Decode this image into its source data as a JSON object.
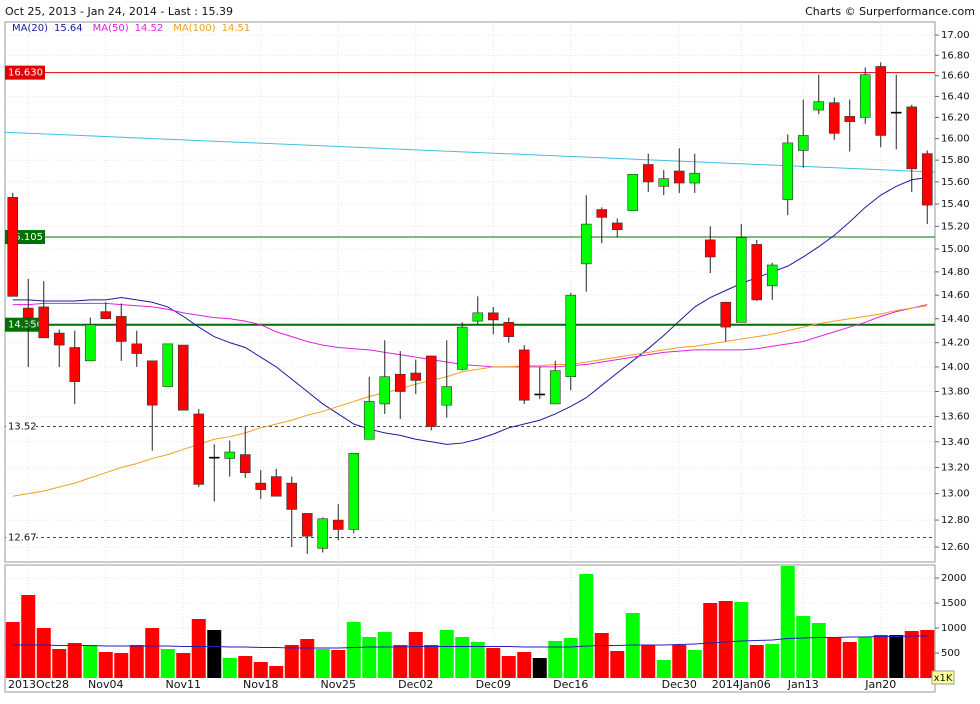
{
  "chart_data": [
    {
      "type": "candlestick",
      "title": "Oct 25, 2013 - Jan 24, 2014 - Last : 15.39",
      "source": "Charts © Surperformance.com",
      "categories": [
        null,
        "2013Oct28",
        null,
        null,
        null,
        null,
        "Nov04",
        null,
        null,
        null,
        null,
        "Nov11",
        null,
        null,
        null,
        null,
        "Nov18",
        null,
        null,
        null,
        null,
        "Nov25",
        null,
        null,
        null,
        null,
        "Dec02",
        null,
        null,
        null,
        null,
        "Dec09",
        null,
        null,
        null,
        null,
        "Dec16",
        null,
        null,
        null,
        null,
        null,
        null,
        "Dec30",
        null,
        null,
        null,
        "2014Jan06",
        null,
        null,
        null,
        "Jan13",
        null,
        null,
        null,
        null,
        "Jan20",
        null,
        null,
        null
      ],
      "open": [
        15.46,
        14.49,
        14.5,
        14.28,
        14.16,
        14.05,
        14.46,
        14.42,
        14.19,
        14.05,
        13.84,
        14.18,
        13.62,
        13.28,
        13.27,
        13.3,
        13.08,
        13.13,
        13.08,
        12.85,
        12.59,
        12.8,
        12.73,
        13.42,
        13.7,
        13.94,
        13.95,
        14.09,
        13.69,
        13.98,
        14.38,
        14.45,
        14.37,
        14.14,
        13.78,
        13.7,
        13.92,
        14.87,
        15.35,
        15.23,
        15.34,
        15.76,
        15.56,
        15.7,
        15.59,
        15.08,
        14.54,
        14.37,
        15.04,
        14.68,
        15.44,
        15.89,
        16.27,
        16.34,
        16.21,
        16.2,
        16.69,
        16.25,
        16.3,
        15.86
      ],
      "high": [
        15.5,
        14.74,
        14.72,
        14.31,
        14.3,
        14.41,
        14.54,
        14.53,
        14.3,
        14.05,
        14.19,
        14.18,
        13.66,
        13.38,
        13.41,
        13.52,
        13.18,
        13.19,
        13.13,
        12.85,
        12.82,
        12.92,
        13.31,
        13.92,
        14.22,
        14.13,
        14.06,
        14.09,
        14.22,
        14.37,
        14.59,
        14.5,
        14.41,
        14.18,
        14.0,
        14.05,
        14.62,
        15.48,
        15.37,
        15.27,
        15.67,
        15.86,
        15.71,
        15.91,
        15.86,
        15.2,
        14.54,
        15.22,
        15.08,
        14.88,
        16.04,
        16.37,
        16.61,
        16.39,
        16.37,
        16.68,
        16.73,
        16.61,
        16.32,
        15.89
      ],
      "low": [
        14.59,
        14.0,
        14.24,
        14.0,
        13.7,
        14.05,
        14.4,
        14.05,
        14.0,
        13.33,
        13.84,
        13.65,
        13.05,
        12.94,
        13.13,
        13.12,
        12.96,
        12.98,
        12.6,
        12.55,
        12.56,
        12.65,
        12.7,
        13.42,
        13.62,
        13.58,
        13.78,
        13.49,
        13.59,
        13.97,
        14.35,
        14.27,
        14.2,
        13.7,
        13.74,
        13.7,
        13.81,
        14.63,
        15.05,
        15.1,
        15.34,
        15.51,
        15.48,
        15.5,
        15.5,
        14.79,
        14.21,
        14.37,
        14.55,
        14.56,
        15.3,
        15.73,
        16.23,
        15.99,
        15.88,
        16.14,
        15.92,
        15.9,
        15.51,
        15.22
      ],
      "close": [
        14.59,
        14.41,
        14.24,
        14.18,
        13.88,
        14.35,
        14.4,
        14.21,
        14.11,
        13.69,
        14.19,
        13.65,
        13.07,
        13.28,
        13.32,
        13.16,
        13.03,
        12.98,
        12.88,
        12.68,
        12.81,
        12.73,
        13.31,
        13.72,
        13.92,
        13.8,
        13.89,
        13.52,
        13.84,
        14.33,
        14.45,
        14.39,
        14.25,
        13.73,
        13.78,
        13.97,
        14.6,
        15.22,
        15.28,
        15.17,
        15.67,
        15.6,
        15.63,
        15.59,
        15.68,
        14.93,
        14.33,
        15.1,
        14.56,
        14.86,
        15.96,
        16.03,
        16.35,
        16.05,
        16.16,
        16.61,
        16.03,
        16.25,
        15.72,
        15.39
      ],
      "up_color": "#00ff00",
      "down_color": "#ff0000",
      "flat_color": "#000000",
      "series": [
        {
          "name": "MA(20)",
          "last": 15.64,
          "color": "#1a1aa0",
          "values": [
            14.56,
            14.56,
            14.55,
            14.55,
            14.55,
            14.56,
            14.56,
            14.58,
            14.56,
            14.54,
            14.5,
            14.42,
            14.33,
            14.25,
            14.2,
            14.16,
            14.08,
            14.0,
            13.9,
            13.8,
            13.7,
            13.62,
            13.54,
            13.5,
            13.47,
            13.45,
            13.42,
            13.4,
            13.38,
            13.39,
            13.42,
            13.46,
            13.51,
            13.54,
            13.57,
            13.62,
            13.68,
            13.75,
            13.85,
            13.95,
            14.05,
            14.15,
            14.26,
            14.38,
            14.5,
            14.58,
            14.64,
            14.7,
            14.75,
            14.8,
            14.85,
            14.93,
            15.02,
            15.12,
            15.24,
            15.37,
            15.48,
            15.56,
            15.62,
            15.64
          ]
        },
        {
          "name": "MA(50)",
          "last": 14.52,
          "color": "#e020e0",
          "values": [
            14.52,
            14.52,
            14.53,
            14.53,
            14.53,
            14.53,
            14.53,
            14.52,
            14.51,
            14.5,
            14.48,
            14.45,
            14.43,
            14.41,
            14.4,
            14.38,
            14.35,
            14.29,
            14.25,
            14.21,
            14.18,
            14.16,
            14.15,
            14.14,
            14.12,
            14.1,
            14.08,
            14.06,
            14.04,
            14.02,
            14.01,
            14.0,
            14.0,
            14.0,
            14.0,
            14.0,
            14.01,
            14.02,
            14.04,
            14.06,
            14.08,
            14.1,
            14.12,
            14.13,
            14.14,
            14.14,
            14.14,
            14.14,
            14.15,
            14.17,
            14.19,
            14.21,
            14.25,
            14.29,
            14.33,
            14.37,
            14.42,
            14.46,
            14.49,
            14.52
          ]
        },
        {
          "name": "MA(100)",
          "last": 14.51,
          "color": "#f0a020",
          "values": [
            12.98,
            13.0,
            13.02,
            13.05,
            13.08,
            13.12,
            13.16,
            13.2,
            13.23,
            13.27,
            13.3,
            13.34,
            13.38,
            13.42,
            13.44,
            13.47,
            13.51,
            13.54,
            13.57,
            13.61,
            13.64,
            13.68,
            13.72,
            13.76,
            13.79,
            13.82,
            13.86,
            13.89,
            13.92,
            13.96,
            13.98,
            14.0,
            14.0,
            14.01,
            14.01,
            14.02,
            14.02,
            14.04,
            14.06,
            14.08,
            14.1,
            14.12,
            14.14,
            14.16,
            14.17,
            14.19,
            14.21,
            14.23,
            14.25,
            14.27,
            14.3,
            14.33,
            14.36,
            14.38,
            14.4,
            14.42,
            14.44,
            14.47,
            14.49,
            14.51
          ]
        }
      ],
      "trendline": {
        "color": "#40c0e0",
        "values": [
          16.06,
          15.69
        ]
      },
      "levels": [
        {
          "value": 16.63,
          "label": "16.630",
          "color": "#e00000",
          "boxed": true,
          "style": "solid"
        },
        {
          "value": 15.105,
          "color": "#007000",
          "boxed": true,
          "style": "solid"
        },
        {
          "value": 14.35,
          "label": "14.350",
          "color": "#007000",
          "boxed": true,
          "style": "thick"
        },
        {
          "value": 13.52,
          "color": "#444444",
          "boxed": false,
          "style": "dashed"
        },
        {
          "value": 12.67,
          "color": "#444444",
          "boxed": false,
          "style": "dashed"
        }
      ],
      "log": true,
      "grid": true,
      "ylim": [
        12.49,
        17.13
      ],
      "yticks": [
        {
          "value": 17,
          "label": "17.00"
        },
        {
          "value": 16.8,
          "label": "16.80"
        },
        {
          "value": 16.6,
          "label": "16.60"
        },
        {
          "value": 16.4,
          "label": "16.40"
        },
        {
          "value": 16.2,
          "label": "16.20"
        },
        {
          "value": 16,
          "label": "16.00"
        },
        {
          "value": 15.8,
          "label": "15.80"
        },
        {
          "value": 15.6,
          "label": "15.60"
        },
        {
          "value": 15.4,
          "label": "15.40"
        },
        {
          "value": 15.2,
          "label": "15.20"
        },
        {
          "value": 15,
          "label": "15.00"
        },
        {
          "value": 14.8,
          "label": "14.80"
        },
        {
          "value": 14.6,
          "label": "14.60"
        },
        {
          "value": 14.4,
          "label": "14.40"
        },
        {
          "value": 14.2,
          "label": "14.20"
        },
        {
          "value": 14,
          "label": "14.00"
        },
        {
          "value": 13.8,
          "label": "13.80"
        },
        {
          "value": 13.6,
          "label": "13.60"
        },
        {
          "value": 13.4,
          "label": "13.40"
        },
        {
          "value": 13.2,
          "label": "13.20"
        },
        {
          "value": 13,
          "label": "13.00"
        },
        {
          "value": 12.8,
          "label": "12.80"
        },
        {
          "value": 12.6,
          "label": "12.60"
        }
      ]
    },
    {
      "type": "bar",
      "unit": "x1K",
      "values": [
        1120,
        1660,
        1000,
        580,
        700,
        660,
        520,
        500,
        660,
        1000,
        580,
        500,
        1180,
        960,
        400,
        440,
        320,
        240,
        660,
        780,
        580,
        560,
        1120,
        820,
        920,
        660,
        920,
        660,
        960,
        820,
        720,
        600,
        440,
        520,
        400,
        740,
        800,
        2080,
        900,
        540,
        1300,
        660,
        360,
        660,
        560,
        1500,
        1540,
        1520,
        660,
        680,
        2240,
        1240,
        1100,
        820,
        720,
        820,
        860,
        860,
        940,
        960
      ],
      "average": {
        "color": "#2020c0",
        "values": [
          660,
          660,
          660,
          650,
          650,
          650,
          640,
          640,
          640,
          640,
          640,
          630,
          630,
          630,
          620,
          620,
          610,
          610,
          600,
          600,
          600,
          600,
          610,
          620,
          620,
          620,
          630,
          630,
          630,
          630,
          630,
          630,
          630,
          620,
          620,
          620,
          620,
          640,
          650,
          650,
          660,
          660,
          660,
          670,
          680,
          700,
          720,
          740,
          750,
          760,
          790,
          800,
          810,
          810,
          820,
          820,
          830,
          830,
          840,
          840
        ]
      },
      "ylim": [
        0,
        2260
      ],
      "yticks": [
        500,
        1000,
        1500,
        2000
      ],
      "grid": true
    }
  ]
}
